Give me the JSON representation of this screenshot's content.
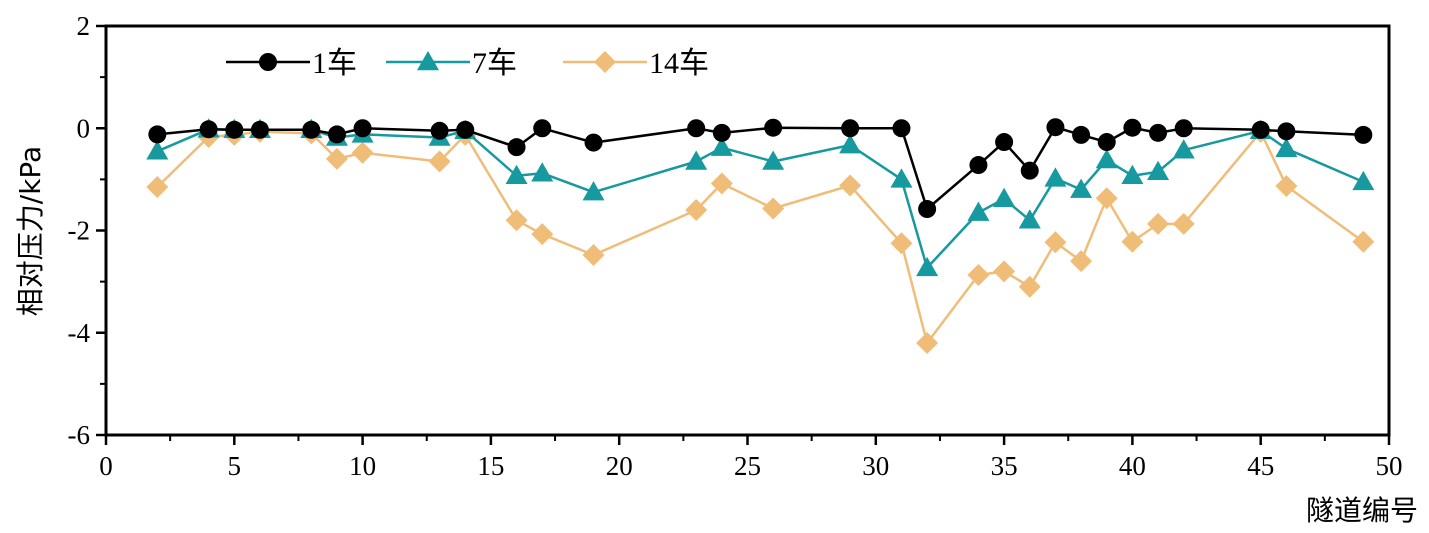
{
  "chart_data": {
    "type": "line",
    "title": "",
    "xlabel": "隧道编号",
    "ylabel": "相对压力/kPa",
    "xlim": [
      0,
      50
    ],
    "ylim": [
      -6,
      2
    ],
    "xticks": [
      0,
      5,
      10,
      15,
      20,
      25,
      30,
      35,
      40,
      45,
      50
    ],
    "yticks": [
      2,
      0,
      -2,
      -4,
      -6
    ],
    "grid": false,
    "legend_position": "top-left",
    "x": [
      2,
      4,
      5,
      6,
      8,
      9,
      10,
      13,
      14,
      16,
      17,
      19,
      23,
      24,
      26,
      29,
      31,
      32,
      34,
      35,
      36,
      37,
      38,
      39,
      40,
      41,
      42,
      45,
      46,
      49
    ],
    "series": [
      {
        "name": "1车",
        "color": "#000000",
        "marker": "circle",
        "values": [
          -0.12,
          -0.02,
          -0.03,
          -0.03,
          -0.03,
          -0.12,
          0.0,
          -0.05,
          -0.03,
          -0.37,
          0.0,
          -0.28,
          0.0,
          -0.09,
          0.01,
          0.0,
          0.0,
          -1.58,
          -0.72,
          -0.27,
          -0.83,
          0.02,
          -0.13,
          -0.27,
          0.01,
          -0.09,
          0.0,
          -0.03,
          -0.06,
          -0.13
        ]
      },
      {
        "name": "7车",
        "color": "#16999f",
        "marker": "triangle",
        "values": [
          -0.45,
          -0.02,
          -0.03,
          -0.03,
          -0.03,
          -0.18,
          -0.12,
          -0.18,
          -0.05,
          -0.93,
          -0.88,
          -1.25,
          -0.65,
          -0.38,
          -0.65,
          -0.33,
          -1.0,
          -2.73,
          -1.65,
          -1.38,
          -1.8,
          -0.98,
          -1.2,
          -0.62,
          -0.93,
          -0.85,
          -0.43,
          -0.05,
          -0.4,
          -1.05
        ]
      },
      {
        "name": "14车",
        "color": "#f0bd78",
        "marker": "diamond",
        "values": [
          -1.15,
          -0.17,
          -0.13,
          -0.07,
          -0.1,
          -0.6,
          -0.48,
          -0.65,
          -0.13,
          -1.8,
          -2.07,
          -2.48,
          -1.6,
          -1.08,
          -1.57,
          -1.12,
          -2.25,
          -4.2,
          -2.87,
          -2.8,
          -3.1,
          -2.23,
          -2.6,
          -1.37,
          -2.22,
          -1.87,
          -1.87,
          -0.07,
          -1.13,
          -2.22
        ]
      }
    ]
  }
}
